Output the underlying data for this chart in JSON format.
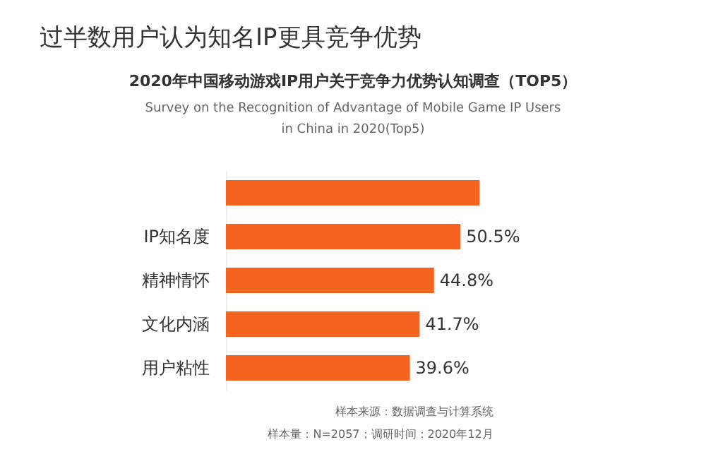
{
  "chart_data": {
    "type": "bar",
    "orientation": "horizontal",
    "title": "过半数用户认为知名IP更具竞争优势",
    "subtitle": "2020年中国移动游戏IP用户关于竞争力优势认知调查（TOP5）\nSurvey on the Recognition of Advantage of Mobile Game IP Users\nin China in 2020(Top5)",
    "categories": [
      null,
      "IP知名度",
      "精神情怀",
      "文化内涵",
      "用户粘性"
    ],
    "values": [
      54.6,
      50.5,
      44.8,
      41.7,
      39.6
    ],
    "value_labels": [
      null,
      "50.5%",
      "44.8%",
      "41.7%",
      "39.6%"
    ],
    "color": "#f5641e",
    "annotations": [
      "样本来源：数据调查与计算系统",
      "样本量：N=2057；调研时间：2020年12月"
    ]
  }
}
